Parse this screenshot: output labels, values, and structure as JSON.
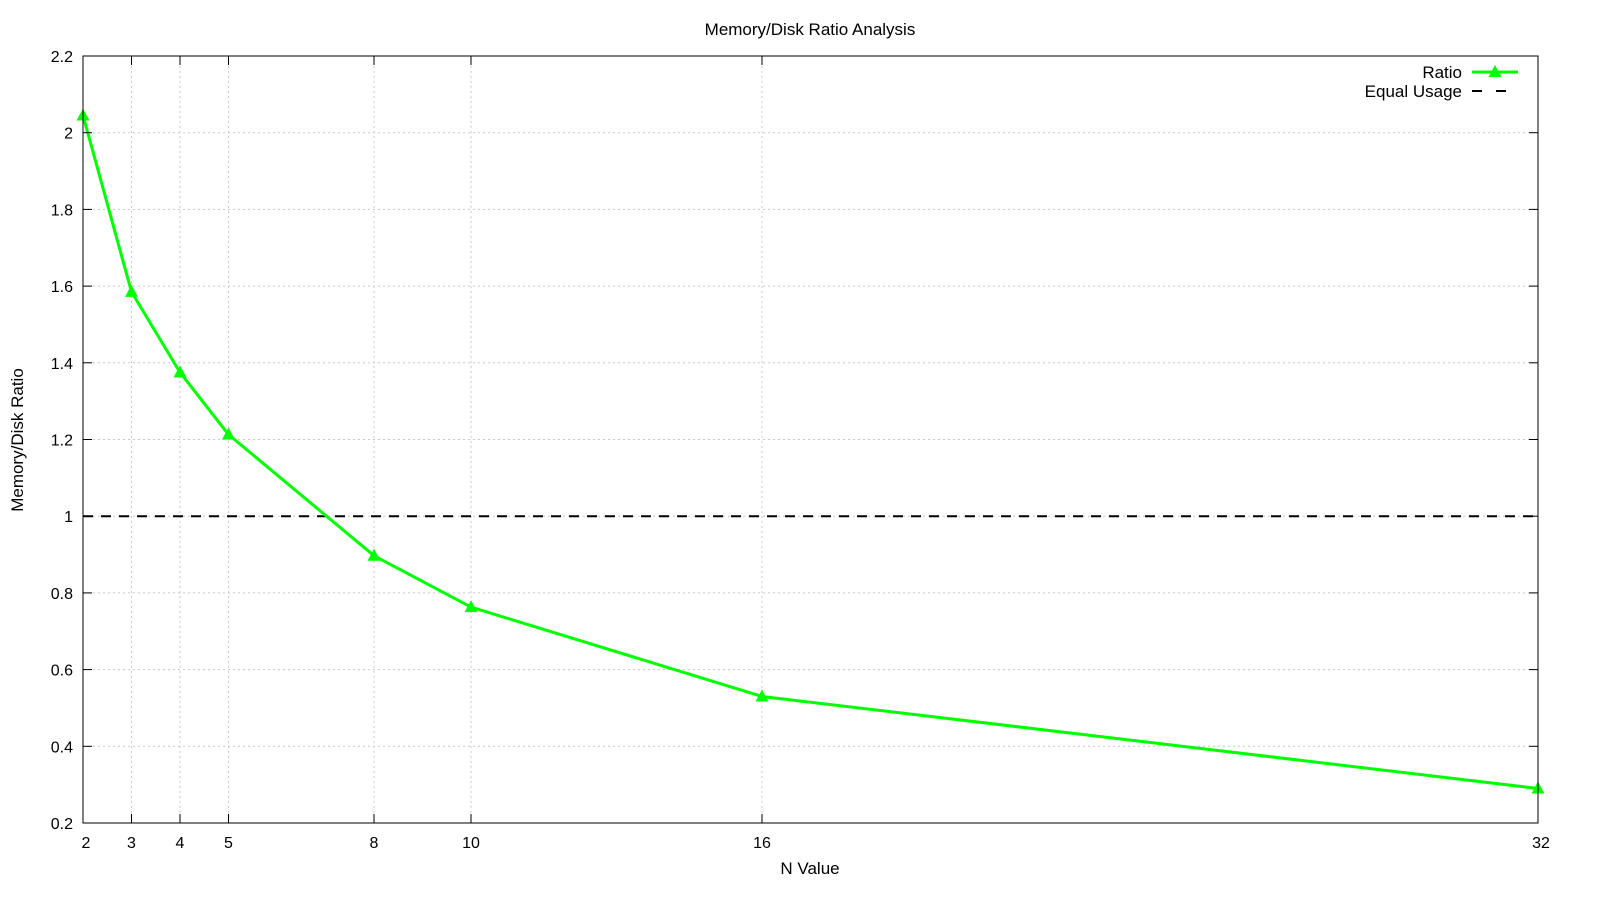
{
  "chart_data": {
    "type": "line",
    "title": "Memory/Disk Ratio Analysis",
    "xlabel": "N Value",
    "ylabel": "Memory/Disk Ratio",
    "xlim": [
      2,
      32
    ],
    "ylim": [
      0.2,
      2.2
    ],
    "x_ticks": [
      2,
      3,
      4,
      5,
      8,
      10,
      16,
      32
    ],
    "y_ticks": [
      0.2,
      0.4,
      0.6,
      0.8,
      1,
      1.2,
      1.4,
      1.6,
      1.8,
      2,
      2.2
    ],
    "y_tick_labels": [
      "0.2",
      "0.4",
      "0.6",
      "0.8",
      "1",
      "1.2",
      "1.4",
      "1.6",
      "1.8",
      "2",
      "2.2"
    ],
    "grid": true,
    "legend_position": "top-right",
    "series": [
      {
        "name": "Ratio",
        "color": "#00ff00",
        "marker": "triangle",
        "x": [
          2,
          3,
          4,
          5,
          8,
          10,
          16,
          32
        ],
        "y": [
          2.045,
          1.585,
          1.375,
          1.213,
          0.897,
          0.763,
          0.53,
          0.29
        ]
      }
    ],
    "reference_lines": [
      {
        "name": "Equal Usage",
        "y": 1,
        "color": "#000000",
        "style": "dashed"
      }
    ]
  }
}
